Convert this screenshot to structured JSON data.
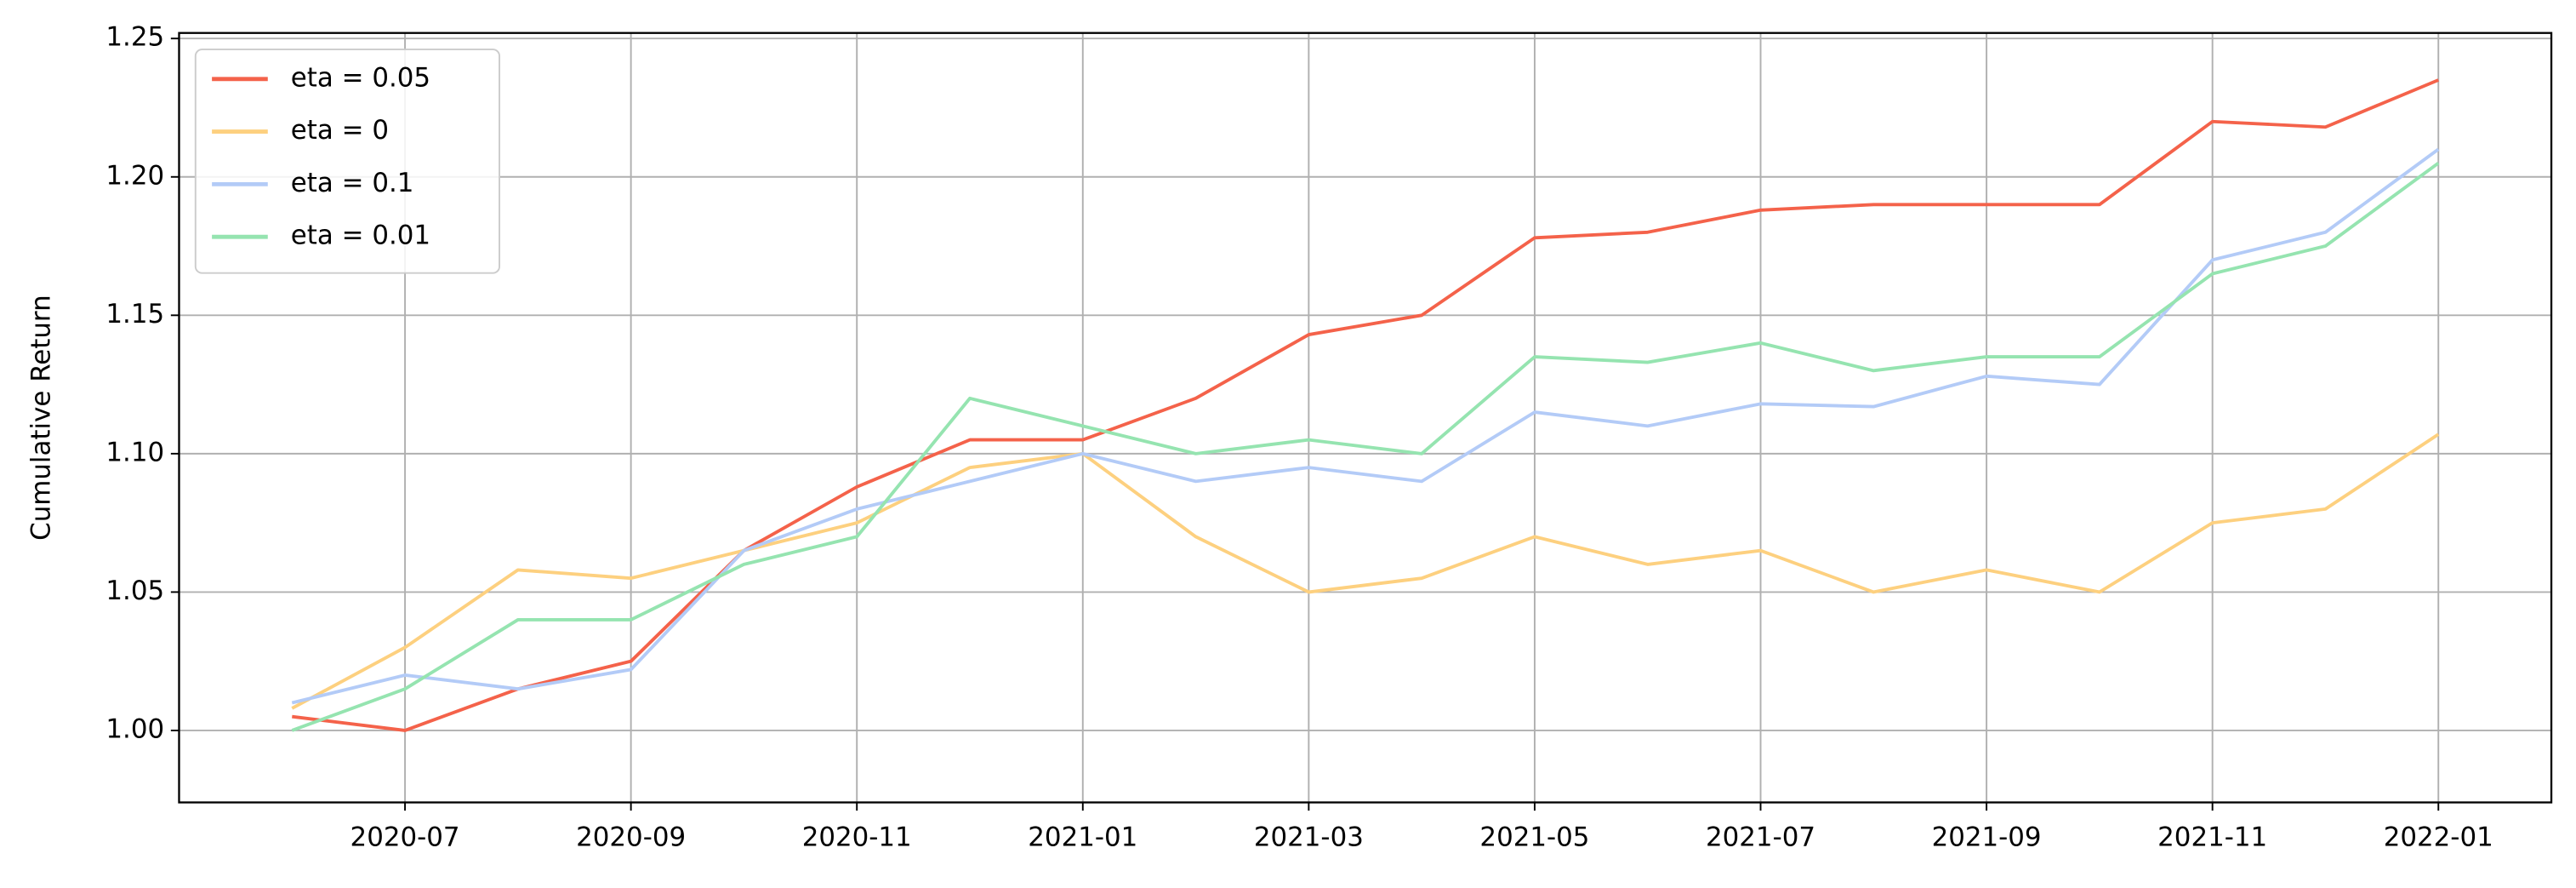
{
  "chart_data": {
    "type": "line",
    "y_label": "Cumulative Return",
    "x": [
      "2020-06",
      "2020-07",
      "2020-08",
      "2020-09",
      "2020-10",
      "2020-11",
      "2020-12",
      "2021-01",
      "2021-02",
      "2021-03",
      "2021-04",
      "2021-05",
      "2021-06",
      "2021-07",
      "2021-08",
      "2021-09",
      "2021-10",
      "2021-11",
      "2021-12",
      "2022-01"
    ],
    "series": [
      {
        "name": "eta = 0.05",
        "color": "#f4624a",
        "values": [
          1.005,
          1.0,
          1.015,
          1.025,
          1.065,
          1.088,
          1.105,
          1.105,
          1.12,
          1.143,
          1.15,
          1.178,
          1.18,
          1.188,
          1.19,
          1.19,
          1.19,
          1.22,
          1.218,
          1.235
        ]
      },
      {
        "name": "eta = 0",
        "color": "#fdd07f",
        "values": [
          1.008,
          1.03,
          1.058,
          1.055,
          1.065,
          1.075,
          1.095,
          1.1,
          1.07,
          1.05,
          1.055,
          1.07,
          1.06,
          1.065,
          1.05,
          1.058,
          1.05,
          1.075,
          1.08,
          1.107
        ]
      },
      {
        "name": "eta = 0.1",
        "color": "#b3cbf7",
        "values": [
          1.01,
          1.02,
          1.015,
          1.022,
          1.065,
          1.08,
          1.09,
          1.1,
          1.09,
          1.095,
          1.09,
          1.115,
          1.11,
          1.118,
          1.117,
          1.128,
          1.125,
          1.17,
          1.18,
          1.21
        ]
      },
      {
        "name": "eta = 0.01",
        "color": "#95e4b0",
        "values": [
          1.0,
          1.015,
          1.04,
          1.04,
          1.06,
          1.07,
          1.12,
          1.11,
          1.1,
          1.105,
          1.1,
          1.135,
          1.133,
          1.14,
          1.13,
          1.135,
          1.135,
          1.165,
          1.175,
          1.205
        ]
      }
    ],
    "xlim": [
      "2020-05",
      "2022-02"
    ],
    "xticks": [
      "2020-07",
      "2020-09",
      "2020-11",
      "2021-01",
      "2021-03",
      "2021-05",
      "2021-07",
      "2021-09",
      "2021-11",
      "2022-01"
    ],
    "ylim": [
      0.974,
      1.252
    ],
    "yticks": [
      {
        "value": 1.0,
        "label": "1.00"
      },
      {
        "value": 1.05,
        "label": "1.05"
      },
      {
        "value": 1.1,
        "label": "1.10"
      },
      {
        "value": 1.15,
        "label": "1.15"
      },
      {
        "value": 1.2,
        "label": "1.20"
      },
      {
        "value": 1.25,
        "label": "1.25"
      }
    ],
    "grid": true,
    "legend": "upper-left"
  }
}
